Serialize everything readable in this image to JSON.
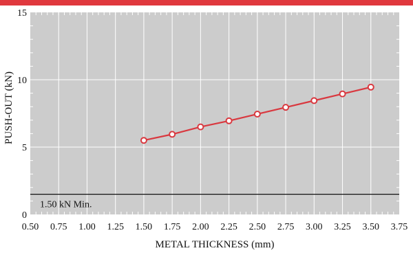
{
  "colors": {
    "accent_bar": "#e0383e",
    "plot_background": "#cccccc",
    "grid": "#ffffff",
    "series": "#d9383f",
    "reference_line": "#111111"
  },
  "chart_data": {
    "type": "line",
    "title": "",
    "xlabel": "METAL THICKNESS (mm)",
    "ylabel": "PUSH-OUT (kN)",
    "xlim": [
      0.5,
      3.75
    ],
    "ylim": [
      0,
      15
    ],
    "grid": true,
    "x_major_step": 0.25,
    "x_minor_step": 0.05,
    "y_major_step": 5,
    "y_minor_step": 1,
    "x_tick_labels": [
      "0.50",
      "0.75",
      "1.00",
      "1.25",
      "1.50",
      "1.75",
      "2.00",
      "2.25",
      "2.50",
      "2.75",
      "3.00",
      "3.25",
      "3.50",
      "3.75"
    ],
    "y_tick_labels": [
      "0",
      "5",
      "10",
      "15"
    ],
    "series": [
      {
        "x": [
          1.5,
          1.75,
          2.0,
          2.25,
          2.5,
          2.75,
          3.0,
          3.25,
          3.5
        ],
        "y": [
          5.5,
          5.95,
          6.5,
          6.95,
          7.45,
          7.95,
          8.45,
          8.95,
          9.45
        ],
        "marker": "open-circle"
      }
    ],
    "reference_line": {
      "y": 1.5,
      "label": "1.50 kN Min."
    }
  }
}
